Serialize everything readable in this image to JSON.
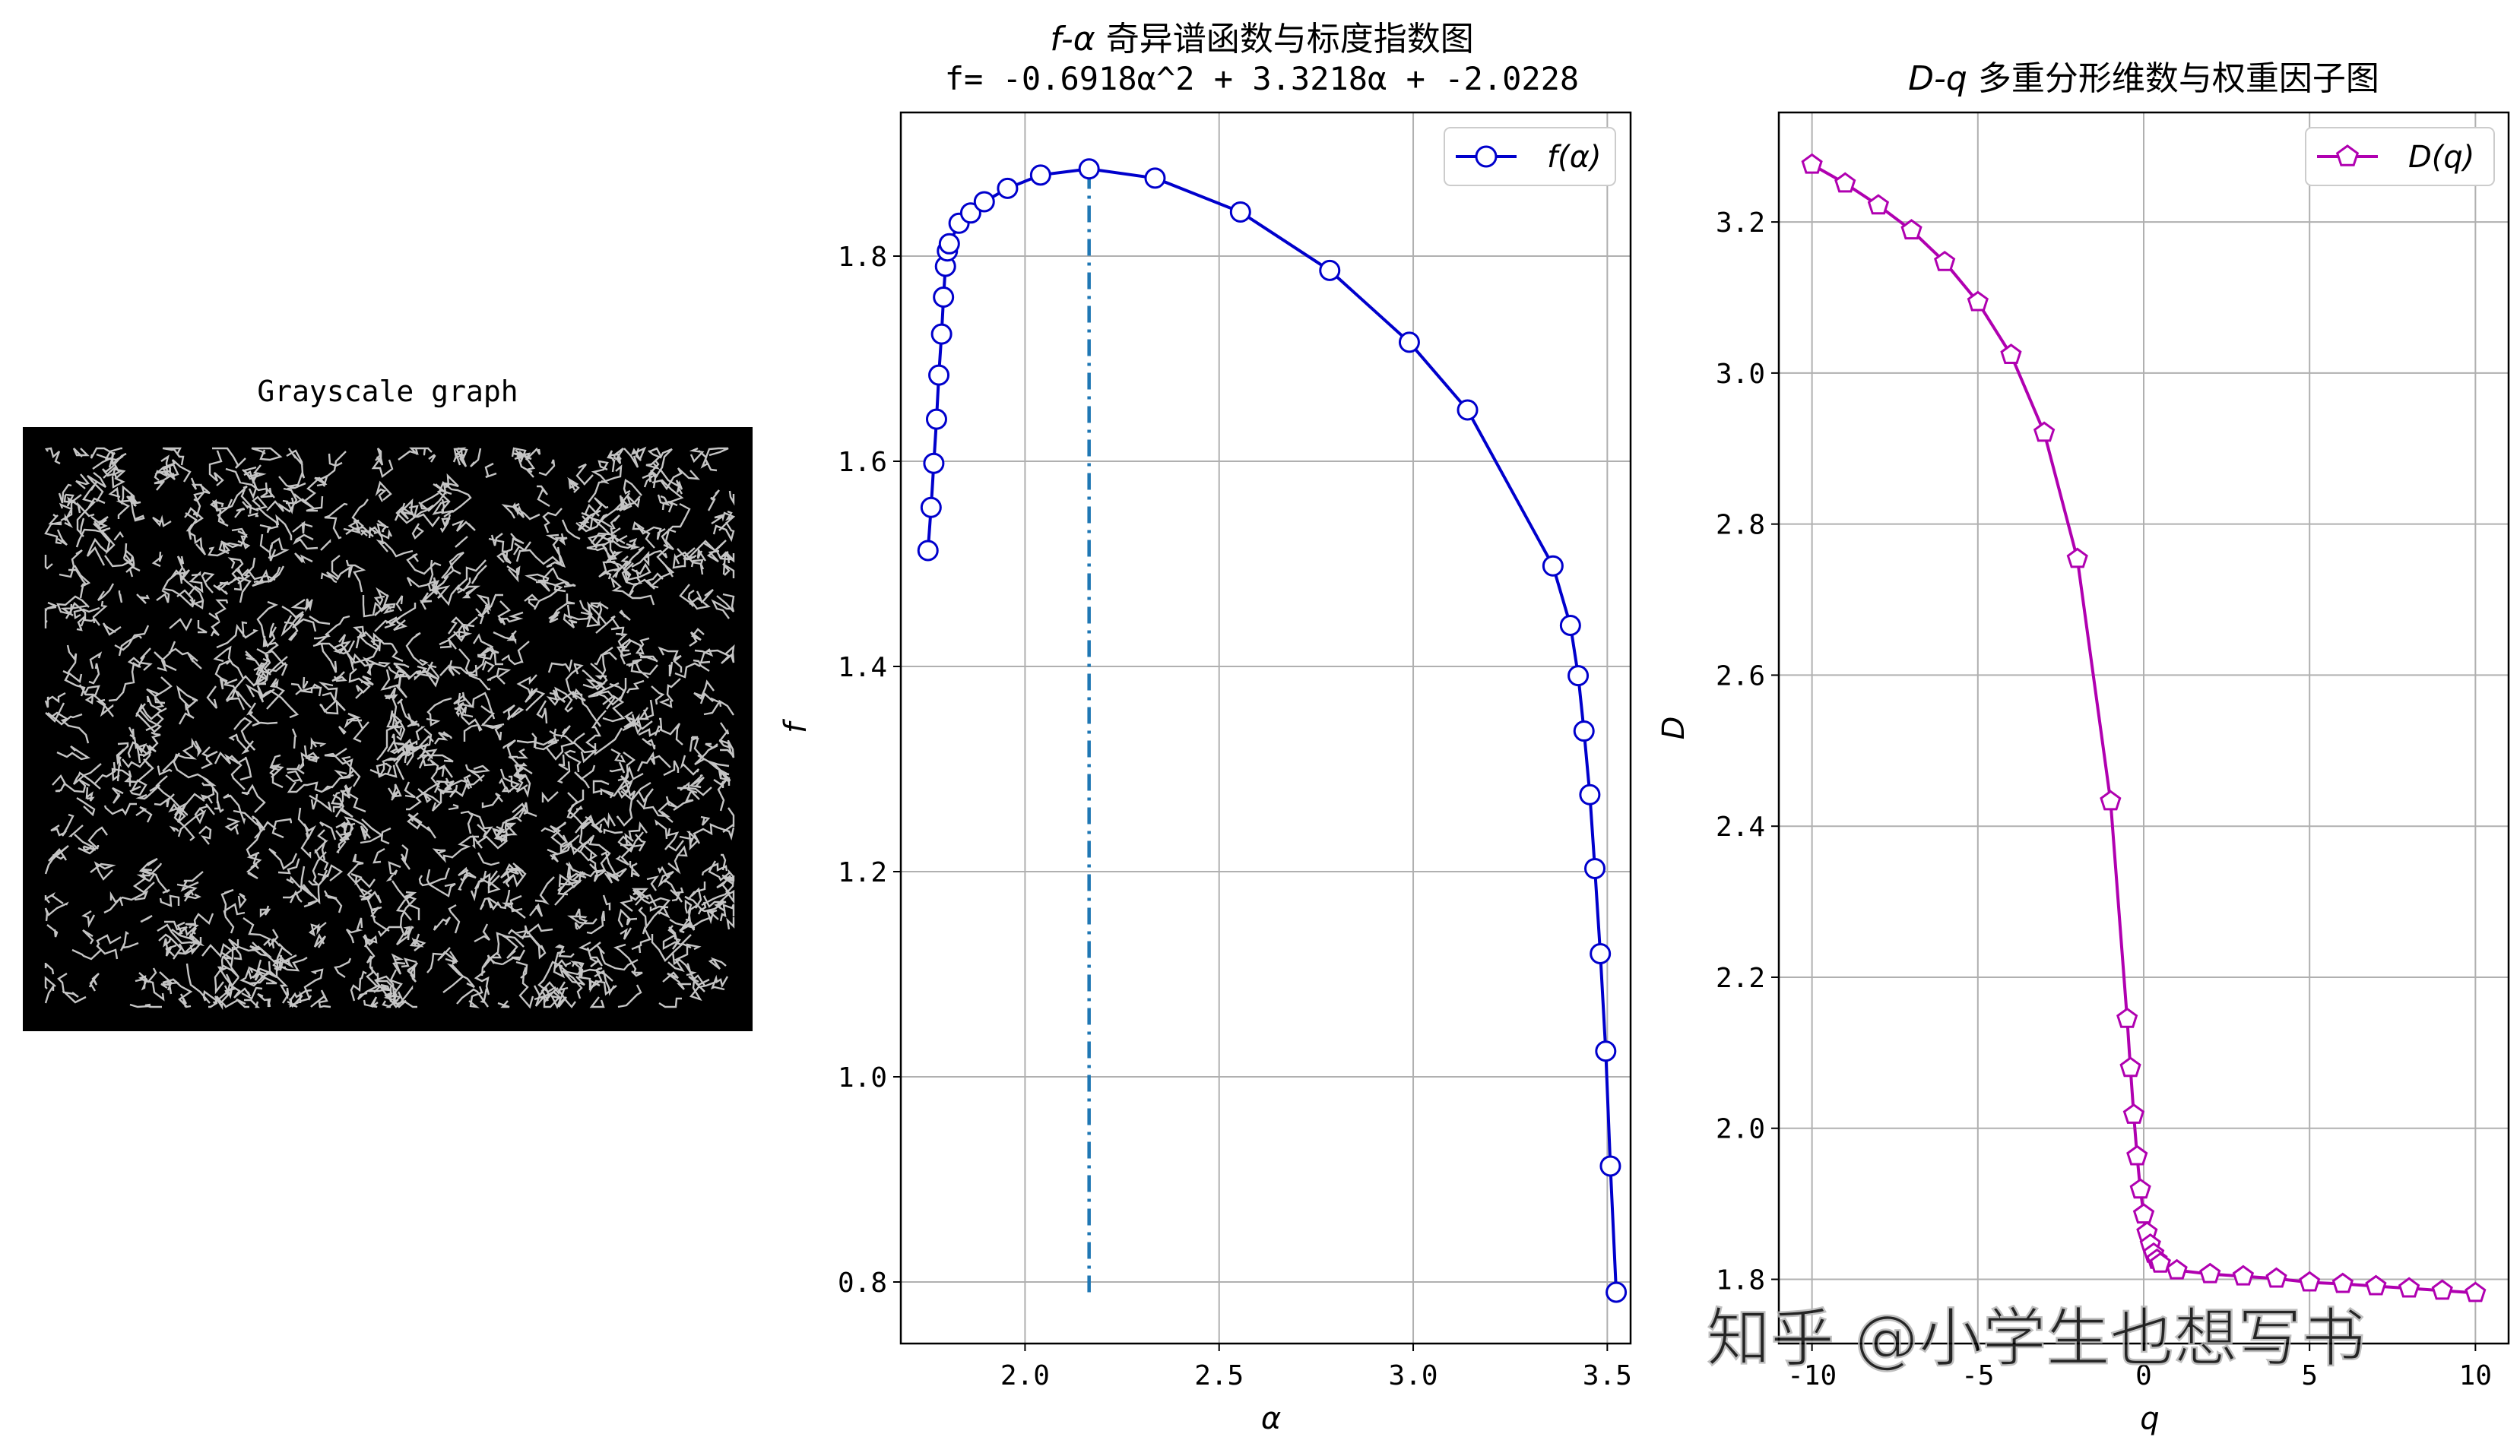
{
  "grayscale": {
    "title": "Grayscale graph"
  },
  "watermark": "知乎 @小学生也想写书",
  "chart_data": [
    {
      "type": "line",
      "title": "f-α 奇异谱函数与标度指数图",
      "title_symbol": "f-α",
      "title_text": "奇异谱函数与标度指数图",
      "subtitle": "f= -0.6918α^2 + 3.3218α  + -2.0228",
      "xlabel": "α",
      "ylabel": "f",
      "xlim": [
        1.68,
        3.56
      ],
      "ylim": [
        0.74,
        1.94
      ],
      "xticks": [
        2.0,
        2.5,
        3.0,
        3.5
      ],
      "yticks": [
        0.8,
        1.0,
        1.2,
        1.4,
        1.6,
        1.8
      ],
      "grid": true,
      "legend_position": "upper-right",
      "series": [
        {
          "name": "f(α)",
          "color": "#0000cc",
          "marker": "circle",
          "points": [
            [
              1.75,
              1.513
            ],
            [
              1.758,
              1.555
            ],
            [
              1.765,
              1.598
            ],
            [
              1.772,
              1.641
            ],
            [
              1.778,
              1.684
            ],
            [
              1.785,
              1.724
            ],
            [
              1.79,
              1.76
            ],
            [
              1.795,
              1.79
            ],
            [
              1.8,
              1.805
            ],
            [
              1.805,
              1.812
            ],
            [
              1.83,
              1.832
            ],
            [
              1.86,
              1.842
            ],
            [
              1.895,
              1.853
            ],
            [
              1.955,
              1.866
            ],
            [
              2.04,
              1.879
            ],
            [
              2.165,
              1.885
            ],
            [
              2.335,
              1.876
            ],
            [
              2.555,
              1.843
            ],
            [
              2.785,
              1.786
            ],
            [
              2.99,
              1.716
            ],
            [
              3.14,
              1.65
            ],
            [
              3.36,
              1.498
            ],
            [
              3.405,
              1.44
            ],
            [
              3.425,
              1.391
            ],
            [
              3.44,
              1.337
            ],
            [
              3.455,
              1.275
            ],
            [
              3.468,
              1.203
            ],
            [
              3.482,
              1.12
            ],
            [
              3.496,
              1.025
            ],
            [
              3.508,
              0.913
            ],
            [
              3.523,
              0.79
            ]
          ]
        }
      ],
      "vline": {
        "x": 2.165,
        "y_from": 0.79,
        "y_to": 1.885,
        "color": "#1f77b4"
      }
    },
    {
      "type": "line",
      "title": "D-q 多重分形维数与权重因子图",
      "title_symbol": "D-q",
      "title_text": "多重分形维数与权重因子图",
      "xlabel": "q",
      "ylabel": "D",
      "xlim": [
        -11,
        11
      ],
      "ylim": [
        1.715,
        3.345
      ],
      "xticks": [
        -10,
        -5,
        0,
        5,
        10
      ],
      "yticks": [
        1.8,
        2.0,
        2.2,
        2.4,
        2.6,
        2.8,
        3.0,
        3.2
      ],
      "grid": true,
      "legend_position": "upper-right",
      "series": [
        {
          "name": "D(q)",
          "color": "#b000b0",
          "marker": "pentagon",
          "points": [
            [
              -10,
              3.276
            ],
            [
              -9,
              3.251
            ],
            [
              -8,
              3.222
            ],
            [
              -7,
              3.189
            ],
            [
              -6,
              3.147
            ],
            [
              -5,
              3.094
            ],
            [
              -4,
              3.024
            ],
            [
              -3,
              2.921
            ],
            [
              -2,
              2.754
            ],
            [
              -1,
              2.433
            ],
            [
              -0.5,
              2.145
            ],
            [
              -0.4,
              2.08
            ],
            [
              -0.3,
              2.018
            ],
            [
              -0.2,
              1.963
            ],
            [
              -0.1,
              1.919
            ],
            [
              0,
              1.886
            ],
            [
              0.1,
              1.862
            ],
            [
              0.2,
              1.846
            ],
            [
              0.3,
              1.834
            ],
            [
              0.4,
              1.826
            ],
            [
              0.5,
              1.821
            ],
            [
              1,
              1.812
            ],
            [
              2,
              1.807
            ],
            [
              3,
              1.804
            ],
            [
              4,
              1.801
            ],
            [
              5,
              1.796
            ],
            [
              6,
              1.794
            ],
            [
              7,
              1.791
            ],
            [
              8,
              1.788
            ],
            [
              9,
              1.785
            ],
            [
              10,
              1.782
            ]
          ]
        }
      ]
    }
  ]
}
